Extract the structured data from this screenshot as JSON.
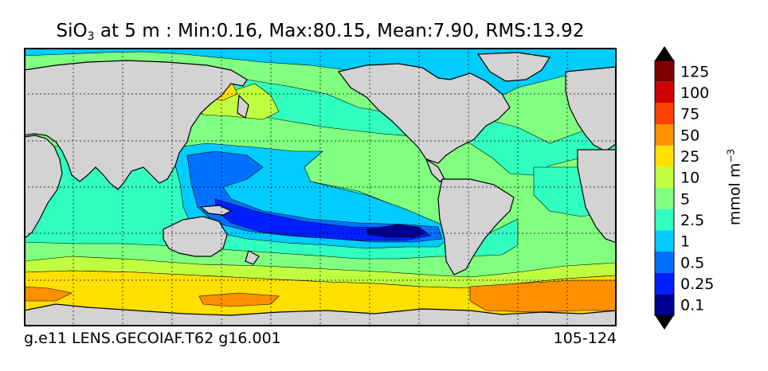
{
  "title": {
    "species": "SiO",
    "species_sub": "3",
    "rest": " at 5 m : Min:0.16, Max:80.15, Mean:7.90, RMS:13.92"
  },
  "footer": {
    "case": "g.e11 LENS.GECOIAF.T62 g16.001",
    "years": "105-124"
  },
  "colorbar": {
    "unit_base": "mmol m",
    "unit_exp": "−3",
    "extend": "both",
    "levels": [
      {
        "label": "0.1",
        "color": "#000090"
      },
      {
        "label": "0.25",
        "color": "#0020ff"
      },
      {
        "label": "0.5",
        "color": "#0070ff"
      },
      {
        "label": "1",
        "color": "#00ccff"
      },
      {
        "label": "2.5",
        "color": "#30ffc0"
      },
      {
        "label": "5",
        "color": "#80ff80"
      },
      {
        "label": "10",
        "color": "#c0ff40"
      },
      {
        "label": "25",
        "color": "#ffe000"
      },
      {
        "label": "50",
        "color": "#ff9000"
      },
      {
        "label": "75",
        "color": "#ff4000"
      },
      {
        "label": "100",
        "color": "#d00000"
      },
      {
        "label": "125",
        "color": "#800000"
      }
    ],
    "under_color": "#000000",
    "over_color": "#000000"
  },
  "chart_data": {
    "type": "heatmap",
    "variable": "SiO3",
    "depth": "5 m",
    "min": 0.16,
    "max": 80.15,
    "mean": 7.9,
    "rms": 13.92,
    "contour_levels": [
      0.1,
      0.25,
      0.5,
      1,
      2.5,
      5,
      10,
      25,
      50,
      75,
      100,
      125
    ],
    "land_color": "#d3d3d3",
    "grid": true
  }
}
